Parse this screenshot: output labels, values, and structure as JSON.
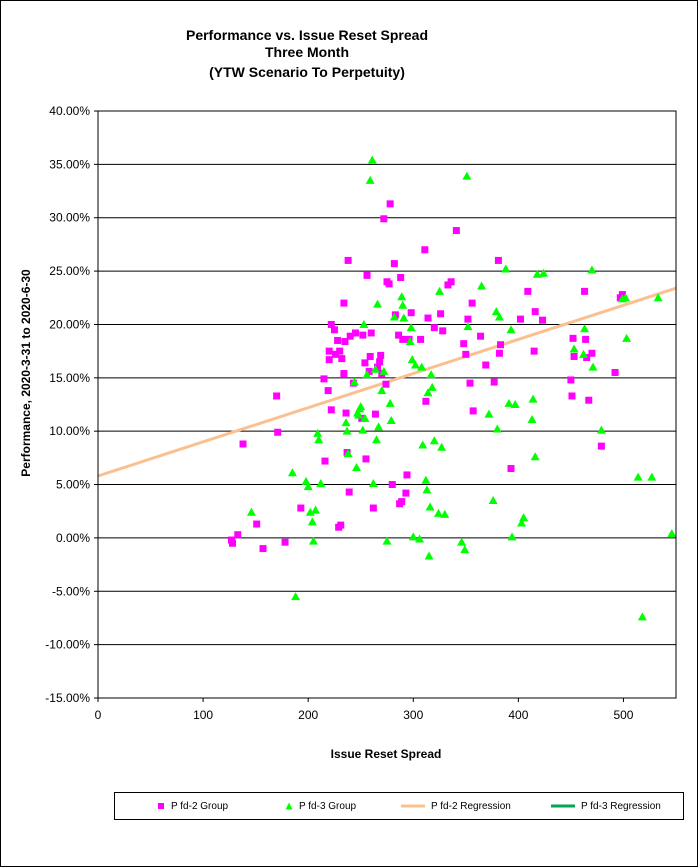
{
  "chart_data": {
    "type": "scatter",
    "title": [
      "Performance vs. Issue Reset Spread",
      "Three Month",
      "(YTW Scenario To Perpetuity)"
    ],
    "xlabel": "Issue  Reset  Spread",
    "ylabel": "Performance, 2020-3-31  to  2020-6-30",
    "xlim": [
      0,
      550
    ],
    "ylim": [
      -15,
      40
    ],
    "x_ticks": [
      0,
      100,
      200,
      300,
      400,
      500
    ],
    "x_tick_labels": [
      "0",
      "100",
      "200",
      "300",
      "400",
      "500"
    ],
    "y_ticks": [
      40,
      35,
      30,
      25,
      20,
      15,
      10,
      5,
      0,
      -5,
      -10,
      -15
    ],
    "y_tick_labels": [
      "40.00%",
      "35.00%",
      "30.00%",
      "25.00%",
      "20.00%",
      "15.00%",
      "10.00%",
      "5.00%",
      "0.00%",
      "-5.00%",
      "-10.00%",
      "-15.00%"
    ],
    "grid": "horizontal",
    "legend_position": "bottom",
    "series": [
      {
        "name": "P fd-2 Group",
        "marker": "square",
        "color": "#ff00ff",
        "points": [
          [
            127,
            -0.2
          ],
          [
            128,
            -0.5
          ],
          [
            133,
            0.3
          ],
          [
            138,
            8.8
          ],
          [
            151,
            1.3
          ],
          [
            157,
            -1.0
          ],
          [
            170,
            13.3
          ],
          [
            171,
            9.9
          ],
          [
            178,
            -0.4
          ],
          [
            193,
            2.8
          ],
          [
            215,
            14.9
          ],
          [
            216,
            7.2
          ],
          [
            219,
            13.8
          ],
          [
            220,
            17.5
          ],
          [
            220,
            16.7
          ],
          [
            222,
            12.0
          ],
          [
            222,
            20.0
          ],
          [
            225,
            19.5
          ],
          [
            226,
            17.2
          ],
          [
            228,
            18.5
          ],
          [
            229,
            1.0
          ],
          [
            230,
            17.5
          ],
          [
            231,
            1.2
          ],
          [
            232,
            16.8
          ],
          [
            234,
            22.0
          ],
          [
            234,
            15.4
          ],
          [
            235,
            18.4
          ],
          [
            236,
            11.7
          ],
          [
            237,
            8.0
          ],
          [
            238,
            26.0
          ],
          [
            239,
            4.3
          ],
          [
            240,
            18.9
          ],
          [
            243,
            14.5
          ],
          [
            245,
            19.2
          ],
          [
            251,
            11.2
          ],
          [
            252,
            19.0
          ],
          [
            254,
            16.4
          ],
          [
            255,
            7.4
          ],
          [
            256,
            24.6
          ],
          [
            258,
            15.6
          ],
          [
            259,
            17.0
          ],
          [
            260,
            19.2
          ],
          [
            262,
            2.8
          ],
          [
            264,
            11.6
          ],
          [
            266,
            16.0
          ],
          [
            268,
            16.5
          ],
          [
            269,
            17.1
          ],
          [
            270,
            15.4
          ],
          [
            272,
            29.9
          ],
          [
            274,
            14.4
          ],
          [
            275,
            24.0
          ],
          [
            277,
            23.8
          ],
          [
            278,
            31.3
          ],
          [
            280,
            5.0
          ],
          [
            282,
            25.7
          ],
          [
            283,
            20.9
          ],
          [
            286,
            19.0
          ],
          [
            287,
            3.2
          ],
          [
            288,
            24.4
          ],
          [
            289,
            3.4
          ],
          [
            290,
            18.6
          ],
          [
            293,
            4.2
          ],
          [
            294,
            5.9
          ],
          [
            296,
            18.6
          ],
          [
            298,
            21.1
          ],
          [
            307,
            18.6
          ],
          [
            311,
            27.0
          ],
          [
            312,
            12.8
          ],
          [
            314,
            20.6
          ],
          [
            320,
            19.7
          ],
          [
            326,
            21.0
          ],
          [
            328,
            19.4
          ],
          [
            333,
            23.7
          ],
          [
            336,
            24.0
          ],
          [
            341,
            28.8
          ],
          [
            348,
            18.2
          ],
          [
            350,
            17.2
          ],
          [
            352,
            20.5
          ],
          [
            354,
            14.5
          ],
          [
            356,
            22.0
          ],
          [
            357,
            11.9
          ],
          [
            364,
            18.9
          ],
          [
            369,
            16.2
          ],
          [
            377,
            14.6
          ],
          [
            381,
            26.0
          ],
          [
            382,
            17.3
          ],
          [
            383,
            18.1
          ],
          [
            393,
            6.5
          ],
          [
            402,
            20.5
          ],
          [
            409,
            23.1
          ],
          [
            415,
            17.5
          ],
          [
            416,
            21.2
          ],
          [
            423,
            20.4
          ],
          [
            450,
            14.8
          ],
          [
            451,
            13.3
          ],
          [
            452,
            18.7
          ],
          [
            453,
            17.0
          ],
          [
            463,
            23.1
          ],
          [
            464,
            18.6
          ],
          [
            465,
            16.9
          ],
          [
            467,
            12.9
          ],
          [
            470,
            17.3
          ],
          [
            479,
            8.6
          ],
          [
            492,
            15.5
          ],
          [
            497,
            22.5
          ],
          [
            499,
            22.8
          ]
        ]
      },
      {
        "name": "P fd-3 Group",
        "marker": "triangle",
        "color": "#00ff00",
        "points": [
          [
            146,
            2.4
          ],
          [
            185,
            6.1
          ],
          [
            188,
            -5.5
          ],
          [
            198,
            5.3
          ],
          [
            200,
            4.8
          ],
          [
            202,
            2.4
          ],
          [
            204,
            1.5
          ],
          [
            205,
            -0.3
          ],
          [
            207,
            2.6
          ],
          [
            209,
            9.8
          ],
          [
            210,
            9.2
          ],
          [
            212,
            5.1
          ],
          [
            236,
            10.8
          ],
          [
            237,
            10.0
          ],
          [
            238,
            7.9
          ],
          [
            244,
            14.6
          ],
          [
            246,
            6.6
          ],
          [
            247,
            11.7
          ],
          [
            248,
            11.5
          ],
          [
            249,
            12.1
          ],
          [
            250,
            12.3
          ],
          [
            252,
            10.1
          ],
          [
            253,
            20.0
          ],
          [
            254,
            11.2
          ],
          [
            256,
            15.3
          ],
          [
            259,
            33.5
          ],
          [
            261,
            35.4
          ],
          [
            262,
            5.1
          ],
          [
            264,
            15.8
          ],
          [
            265,
            9.2
          ],
          [
            266,
            21.9
          ],
          [
            267,
            10.4
          ],
          [
            270,
            13.8
          ],
          [
            272,
            15.6
          ],
          [
            275,
            -0.3
          ],
          [
            278,
            12.6
          ],
          [
            279,
            11.0
          ],
          [
            282,
            20.7
          ],
          [
            289,
            22.6
          ],
          [
            290,
            21.8
          ],
          [
            291,
            20.6
          ],
          [
            297,
            18.4
          ],
          [
            298,
            19.7
          ],
          [
            299,
            16.7
          ],
          [
            300,
            0.1
          ],
          [
            302,
            16.2
          ],
          [
            306,
            -0.1
          ],
          [
            308,
            16.0
          ],
          [
            309,
            8.7
          ],
          [
            312,
            5.4
          ],
          [
            313,
            4.5
          ],
          [
            314,
            13.6
          ],
          [
            315,
            -1.7
          ],
          [
            316,
            2.9
          ],
          [
            317,
            15.3
          ],
          [
            318,
            14.1
          ],
          [
            320,
            9.1
          ],
          [
            324,
            2.3
          ],
          [
            325,
            23.1
          ],
          [
            327,
            8.5
          ],
          [
            330,
            2.2
          ],
          [
            346,
            -0.4
          ],
          [
            349,
            -1.1
          ],
          [
            351,
            33.9
          ],
          [
            352,
            19.8
          ],
          [
            365,
            23.6
          ],
          [
            372,
            11.6
          ],
          [
            376,
            3.5
          ],
          [
            379,
            21.2
          ],
          [
            380,
            10.2
          ],
          [
            382,
            20.7
          ],
          [
            388,
            25.2
          ],
          [
            391,
            12.6
          ],
          [
            393,
            19.5
          ],
          [
            394,
            0.1
          ],
          [
            397,
            12.5
          ],
          [
            403,
            1.4
          ],
          [
            405,
            1.9
          ],
          [
            413,
            11.1
          ],
          [
            414,
            13.0
          ],
          [
            416,
            7.6
          ],
          [
            418,
            24.7
          ],
          [
            424,
            24.8
          ],
          [
            453,
            17.7
          ],
          [
            462,
            17.2
          ],
          [
            463,
            19.6
          ],
          [
            470,
            25.1
          ],
          [
            471,
            16.0
          ],
          [
            479,
            10.1
          ],
          [
            499,
            22.4
          ],
          [
            502,
            22.5
          ],
          [
            503,
            18.7
          ],
          [
            514,
            5.7
          ],
          [
            518,
            -7.4
          ],
          [
            527,
            5.7
          ],
          [
            533,
            22.5
          ],
          [
            546,
            0.4
          ]
        ]
      },
      {
        "name": "P fd-2 Regression",
        "type": "line",
        "color": "#fac090",
        "points": [
          [
            0,
            5.8
          ],
          [
            550,
            23.4
          ]
        ]
      },
      {
        "name": "P fd-3 Regression",
        "type": "line",
        "color": "#00a651",
        "points": []
      }
    ]
  }
}
